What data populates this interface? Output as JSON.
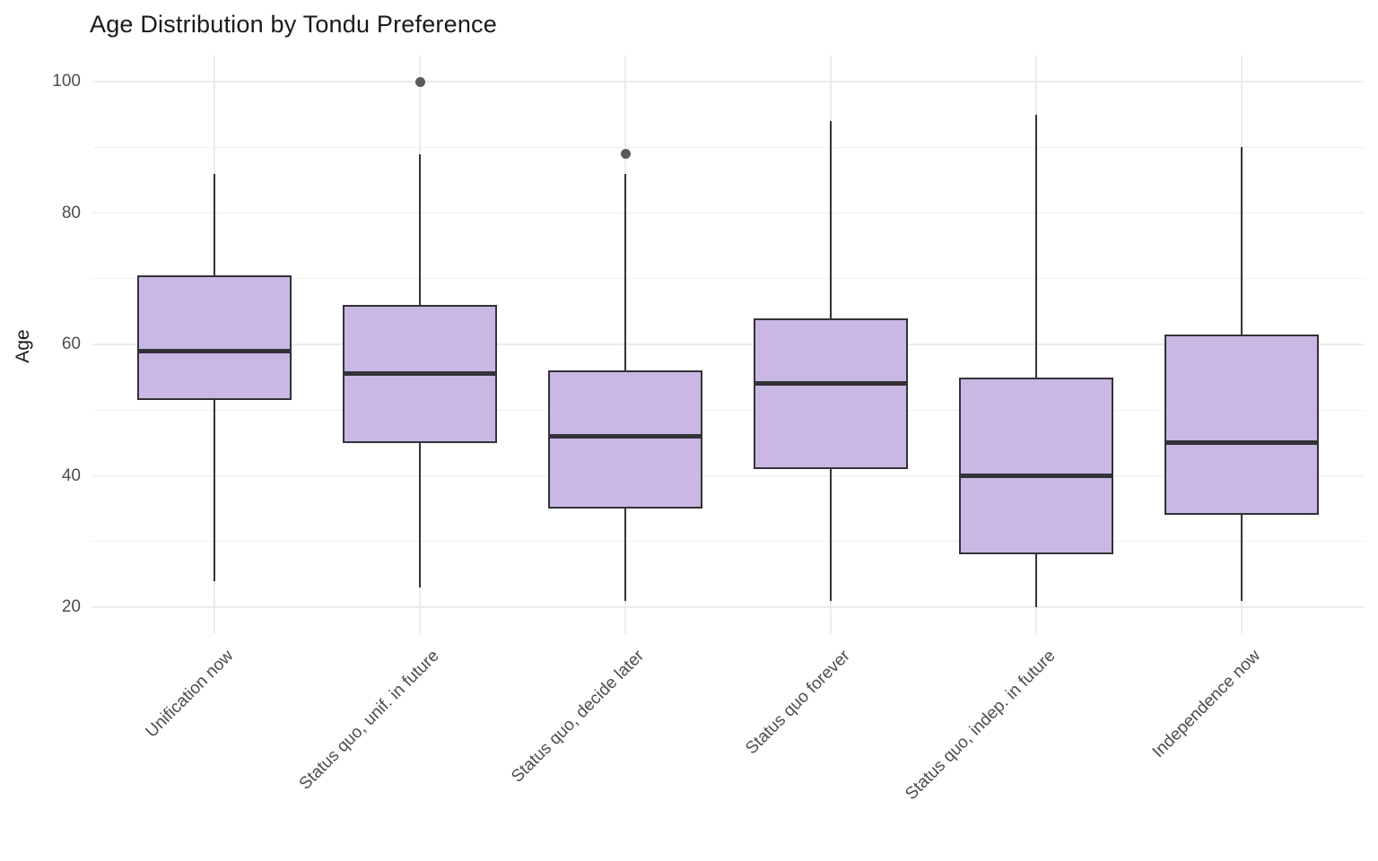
{
  "chart_data": {
    "type": "boxplot",
    "title": "Age Distribution by Tondu Preference",
    "xlabel": "",
    "ylabel": "Age",
    "categories": [
      "Unification now",
      "Status quo, unif. in future",
      "Status quo, decide later",
      "Status quo forever",
      "Status quo, indep. in future",
      "Independence now"
    ],
    "boxes": [
      {
        "category": "Unification now",
        "min": 24,
        "q1": 51.5,
        "median": 59,
        "q3": 70.5,
        "max": 86,
        "outliers": []
      },
      {
        "category": "Status quo, unif. in future",
        "min": 23,
        "q1": 45,
        "median": 55.5,
        "q3": 66,
        "max": 89,
        "outliers": [
          100
        ]
      },
      {
        "category": "Status quo, decide later",
        "min": 21,
        "q1": 35,
        "median": 46,
        "q3": 56,
        "max": 86,
        "outliers": [
          89
        ]
      },
      {
        "category": "Status quo forever",
        "min": 21,
        "q1": 41,
        "median": 54,
        "q3": 64,
        "max": 94,
        "outliers": []
      },
      {
        "category": "Status quo, indep. in future",
        "min": 20,
        "q1": 28,
        "median": 40,
        "q3": 55,
        "max": 95,
        "outliers": []
      },
      {
        "category": "Independence now",
        "min": 21,
        "q1": 34,
        "median": 45,
        "q3": 61.5,
        "max": 90,
        "outliers": []
      }
    ],
    "y_ticks": [
      20,
      40,
      60,
      80,
      100
    ],
    "y_minor_gridlines": [
      30,
      50,
      70,
      90
    ],
    "ylim": [
      20,
      100
    ],
    "grid": "on",
    "legend": "none"
  },
  "colors": {
    "background": "#FFFFFF",
    "box_fill": "#C9B7E4",
    "box_border": "#333238",
    "median": "#333238",
    "whisker": "#333238",
    "outlier": "#595959",
    "grid_major": "#EBEBEB",
    "grid_minor": "#F1F1F1",
    "axis_text": "#4D4D4D",
    "title_text": "#1A1A1A"
  }
}
